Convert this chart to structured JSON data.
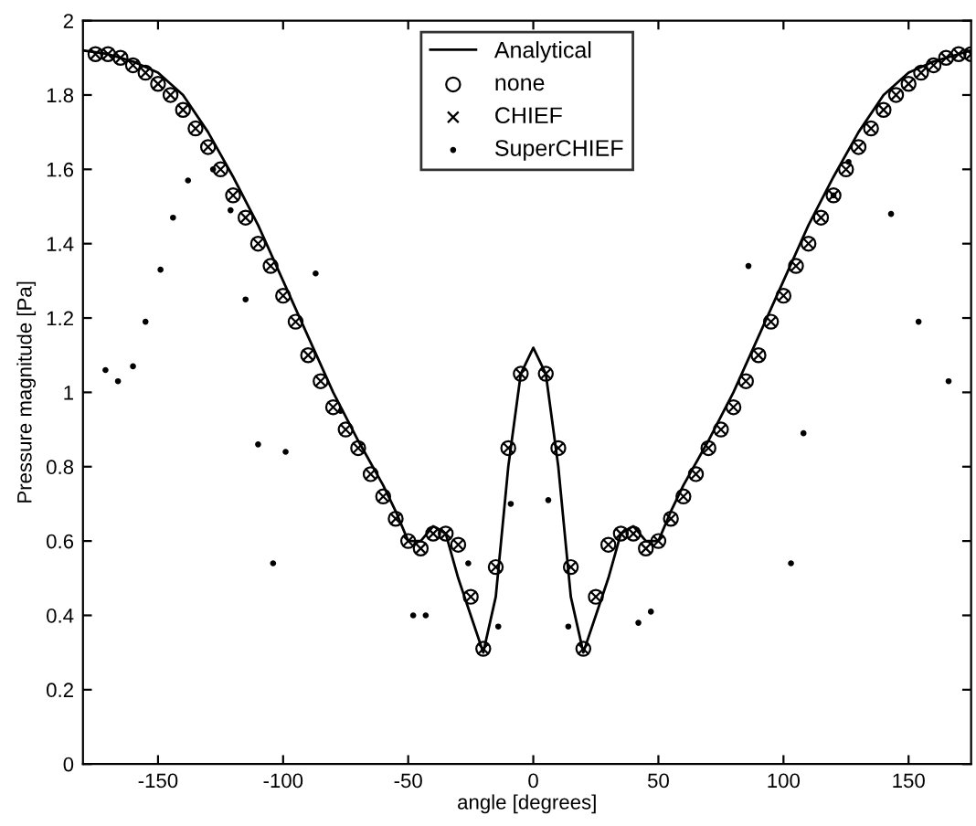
{
  "chart_data": {
    "type": "scatter",
    "xlabel": "angle [degrees]",
    "ylabel": "Pressure magnitude [Pa]",
    "xlim": [
      -180,
      175
    ],
    "ylim": [
      0,
      2
    ],
    "xticks": [
      -150,
      -100,
      -50,
      0,
      50,
      100,
      150
    ],
    "yticks": [
      0,
      0.2,
      0.4,
      0.6,
      0.8,
      1,
      1.2,
      1.4,
      1.6,
      1.8,
      2
    ],
    "grid": false,
    "legend": "top",
    "series": [
      {
        "name": "Analytical",
        "type": "line",
        "color": "#000000",
        "line_style": "solid",
        "marker": "none",
        "x": [
          -180,
          -170,
          -160,
          -150,
          -140,
          -130,
          -120,
          -110,
          -100,
          -90,
          -80,
          -70,
          -60,
          -55,
          -50,
          -45,
          -40,
          -35,
          -30,
          -25,
          -20,
          -15,
          -10,
          -5,
          0,
          5,
          10,
          15,
          20,
          25,
          30,
          35,
          40,
          45,
          50,
          55,
          60,
          70,
          80,
          90,
          100,
          110,
          120,
          130,
          140,
          150,
          160,
          170,
          175
        ],
        "values": [
          1.92,
          1.91,
          1.89,
          1.86,
          1.8,
          1.7,
          1.58,
          1.45,
          1.3,
          1.15,
          1.0,
          0.87,
          0.75,
          0.68,
          0.6,
          0.6,
          0.64,
          0.62,
          0.5,
          0.4,
          0.3,
          0.45,
          0.8,
          1.05,
          1.12,
          1.05,
          0.8,
          0.45,
          0.3,
          0.4,
          0.5,
          0.62,
          0.64,
          0.6,
          0.6,
          0.68,
          0.75,
          0.87,
          1.0,
          1.15,
          1.3,
          1.45,
          1.58,
          1.7,
          1.8,
          1.86,
          1.89,
          1.91,
          1.92
        ]
      },
      {
        "name": "none",
        "color": "#000000",
        "marker": "circle",
        "x": [
          -175,
          -170,
          -165,
          -160,
          -155,
          -150,
          -145,
          -140,
          -135,
          -130,
          -125,
          -120,
          -115,
          -110,
          -105,
          -100,
          -95,
          -90,
          -85,
          -80,
          -75,
          -70,
          -65,
          -60,
          -55,
          -50,
          -45,
          -40,
          -35,
          -30,
          -25,
          -20,
          -15,
          -10,
          -5,
          5,
          10,
          15,
          20,
          25,
          30,
          35,
          40,
          45,
          50,
          55,
          60,
          65,
          70,
          75,
          80,
          85,
          90,
          95,
          100,
          105,
          110,
          115,
          120,
          125,
          130,
          135,
          140,
          145,
          150,
          155,
          160,
          165,
          170,
          175
        ],
        "values": [
          1.91,
          1.91,
          1.9,
          1.88,
          1.86,
          1.83,
          1.8,
          1.76,
          1.71,
          1.66,
          1.6,
          1.53,
          1.47,
          1.4,
          1.34,
          1.26,
          1.19,
          1.1,
          1.03,
          0.96,
          0.9,
          0.85,
          0.78,
          0.72,
          0.66,
          0.6,
          0.58,
          0.62,
          0.62,
          0.59,
          0.45,
          0.31,
          0.53,
          0.85,
          1.05,
          1.05,
          0.85,
          0.53,
          0.31,
          0.45,
          0.59,
          0.62,
          0.62,
          0.58,
          0.6,
          0.66,
          0.72,
          0.78,
          0.85,
          0.9,
          0.96,
          1.03,
          1.1,
          1.19,
          1.26,
          1.34,
          1.4,
          1.47,
          1.53,
          1.6,
          1.66,
          1.71,
          1.76,
          1.8,
          1.83,
          1.86,
          1.88,
          1.9,
          1.91,
          1.91
        ]
      },
      {
        "name": "CHIEF",
        "color": "#000000",
        "marker": "cross",
        "x": [
          -175,
          -170,
          -165,
          -160,
          -155,
          -150,
          -145,
          -140,
          -135,
          -130,
          -125,
          -120,
          -115,
          -110,
          -105,
          -100,
          -95,
          -90,
          -85,
          -80,
          -75,
          -70,
          -65,
          -60,
          -55,
          -50,
          -45,
          -40,
          -35,
          -30,
          -25,
          -20,
          -15,
          -10,
          -5,
          5,
          10,
          15,
          20,
          25,
          30,
          35,
          40,
          45,
          50,
          55,
          60,
          65,
          70,
          75,
          80,
          85,
          90,
          95,
          100,
          105,
          110,
          115,
          120,
          125,
          130,
          135,
          140,
          145,
          150,
          155,
          160,
          165,
          170,
          175
        ],
        "values": [
          1.91,
          1.91,
          1.9,
          1.88,
          1.86,
          1.83,
          1.8,
          1.76,
          1.71,
          1.66,
          1.6,
          1.53,
          1.47,
          1.4,
          1.34,
          1.26,
          1.19,
          1.1,
          1.03,
          0.96,
          0.9,
          0.85,
          0.78,
          0.72,
          0.66,
          0.6,
          0.58,
          0.62,
          0.62,
          0.59,
          0.45,
          0.31,
          0.53,
          0.85,
          1.05,
          1.05,
          0.85,
          0.53,
          0.31,
          0.45,
          0.59,
          0.62,
          0.62,
          0.58,
          0.6,
          0.66,
          0.72,
          0.78,
          0.85,
          0.9,
          0.96,
          1.03,
          1.1,
          1.19,
          1.26,
          1.34,
          1.4,
          1.47,
          1.53,
          1.6,
          1.66,
          1.71,
          1.76,
          1.8,
          1.83,
          1.86,
          1.88,
          1.9,
          1.91,
          1.91
        ]
      },
      {
        "name": "SuperCHIEF",
        "color": "#000000",
        "marker": "point",
        "x": [
          -171,
          -166,
          -160,
          -155,
          -149,
          -144,
          -138,
          -128,
          -121,
          -115,
          -110,
          -104,
          -99,
          -87,
          -77,
          -48,
          -43,
          -26,
          -14,
          -9,
          6,
          14,
          42,
          47,
          86,
          103,
          108,
          120,
          126,
          143,
          154,
          166
        ],
        "values": [
          1.06,
          1.03,
          1.07,
          1.19,
          1.33,
          1.47,
          1.57,
          1.6,
          1.49,
          1.25,
          0.86,
          0.54,
          0.84,
          1.32,
          0.95,
          0.4,
          0.4,
          0.54,
          0.37,
          0.7,
          0.71,
          0.37,
          0.38,
          0.41,
          1.34,
          0.54,
          0.89,
          1.53,
          1.62,
          1.48,
          1.19,
          1.03
        ]
      }
    ]
  }
}
